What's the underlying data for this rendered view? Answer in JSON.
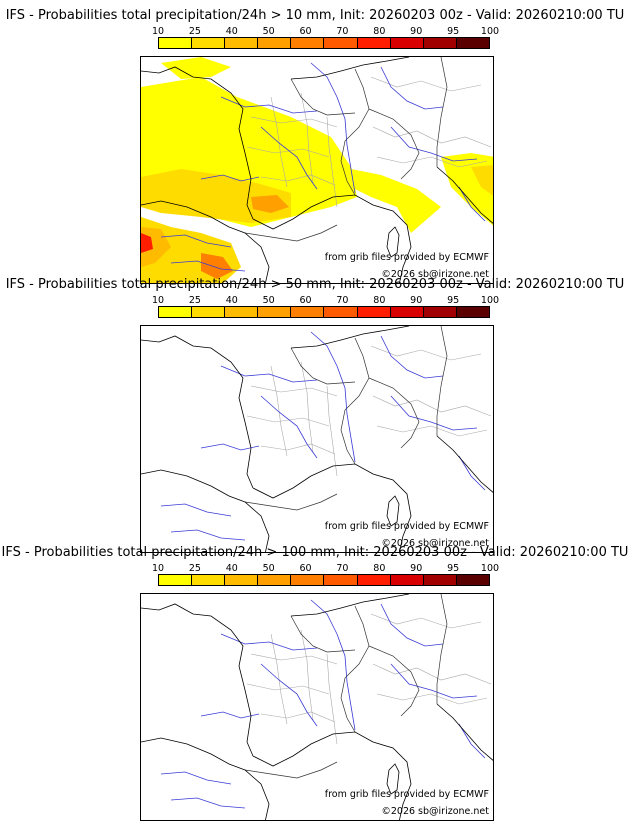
{
  "colorbar": {
    "labels": [
      "10",
      "25",
      "40",
      "50",
      "60",
      "70",
      "80",
      "90",
      "95",
      "100"
    ],
    "colors": [
      "#ffff00",
      "#ffdc00",
      "#ffbb00",
      "#ff9f00",
      "#ff8000",
      "#ff5a00",
      "#ff1e00",
      "#d80000",
      "#a00000",
      "#5a0000"
    ]
  },
  "panels": [
    {
      "title": "IFS - Probabilities total precipitation/24h > 10 mm, Init: 20260203 00z - Valid: 20260210:00 TU",
      "source_text": "from grib files provided by ECMWF",
      "copyright_text": "©2026 sb@irizone.net",
      "has_probability_fill": true
    },
    {
      "title": "IFS - Probabilities total precipitation/24h > 50 mm, Init: 20260203 00z - Valid: 20260210:00 TU",
      "source_text": "from grib files provided by ECMWF",
      "copyright_text": "©2026 sb@irizone.net",
      "has_probability_fill": false
    },
    {
      "title": "IFS - Probabilities total precipitation/24h > 100 mm, Init: 20260203 00z - Valid: 20260210:00 TU",
      "source_text": "from grib files provided by ECMWF",
      "copyright_text": "©2026 sb@irizone.net",
      "has_probability_fill": false
    }
  ]
}
